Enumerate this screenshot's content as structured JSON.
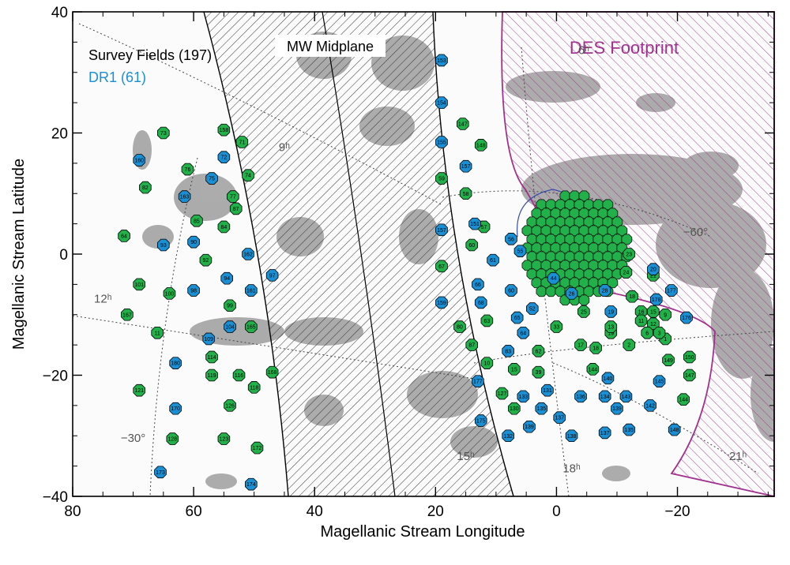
{
  "chart_data": {
    "type": "scatter",
    "title": "",
    "xlabel": "Magellanic Stream Longitude",
    "ylabel": "Magellanic Stream Latitude",
    "xlim": [
      80,
      -36
    ],
    "ylim": [
      -40,
      40
    ],
    "xticks": [
      "80",
      "60",
      "40",
      "20",
      "0",
      "−20"
    ],
    "xtick_values": [
      80,
      60,
      40,
      20,
      0,
      -20
    ],
    "yticks": [
      "40",
      "20",
      "0",
      "−20",
      "−40"
    ],
    "ytick_values": [
      40,
      20,
      0,
      -20,
      -40
    ],
    "legend": [
      {
        "label": "Survey Fields (197)",
        "color": "#000000"
      },
      {
        "label": "DR1 (61)",
        "color": "#1a8fd4"
      }
    ],
    "annotations": {
      "mw_midplane": "MW Midplane",
      "des_footprint": "DES Footprint",
      "grid_labels": [
        {
          "text": "6ʰ",
          "x": -4.5,
          "y": 33
        },
        {
          "text": "9ʰ",
          "x": 45,
          "y": 17
        },
        {
          "text": "12ʰ",
          "x": 75,
          "y": -8
        },
        {
          "text": "15ʰ",
          "x": 15,
          "y": -34
        },
        {
          "text": "18ʰ",
          "x": -2.5,
          "y": -36
        },
        {
          "text": "21ʰ",
          "x": -30,
          "y": -34
        },
        {
          "text": "−30°",
          "x": 70,
          "y": -31
        },
        {
          "text": "−60°",
          "x": -23,
          "y": 3
        }
      ]
    },
    "colors": {
      "survey": "#22b04a",
      "dr1": "#1a8fd4",
      "des": "#a0318e",
      "hi": "#8a8a8a",
      "hatch": "#333333"
    },
    "series": [
      {
        "name": "Survey Fields (197)",
        "points": [
          {
            "x": 65,
            "y": 20,
            "label": "73"
          },
          {
            "x": 55,
            "y": 20.5,
            "label": "158"
          },
          {
            "x": 52,
            "y": 18.5,
            "label": "71"
          },
          {
            "x": 61,
            "y": 14,
            "label": "76"
          },
          {
            "x": 51,
            "y": 13,
            "label": "74"
          },
          {
            "x": 68,
            "y": 11,
            "label": "82"
          },
          {
            "x": 53.5,
            "y": 9.5,
            "label": "77"
          },
          {
            "x": 53,
            "y": 7.5,
            "label": "87"
          },
          {
            "x": 59.5,
            "y": 5.5,
            "label": "85"
          },
          {
            "x": 55,
            "y": 4.5,
            "label": "84"
          },
          {
            "x": 71.5,
            "y": 3,
            "label": "64"
          },
          {
            "x": 58,
            "y": -1,
            "label": "92"
          },
          {
            "x": 69,
            "y": -5,
            "label": "101"
          },
          {
            "x": 64,
            "y": -6.5,
            "label": "100"
          },
          {
            "x": 71,
            "y": -10,
            "label": "167"
          },
          {
            "x": 54,
            "y": -8.5,
            "label": "99"
          },
          {
            "x": 50.5,
            "y": -12,
            "label": "165"
          },
          {
            "x": 66,
            "y": -13,
            "label": "11"
          },
          {
            "x": 57,
            "y": -17,
            "label": "114"
          },
          {
            "x": 47,
            "y": -19.5,
            "label": "168"
          },
          {
            "x": 57,
            "y": -20,
            "label": "119"
          },
          {
            "x": 52.5,
            "y": -20,
            "label": "116"
          },
          {
            "x": 50,
            "y": -22,
            "label": "118"
          },
          {
            "x": 69,
            "y": -22.5,
            "label": "121"
          },
          {
            "x": 54,
            "y": -25,
            "label": "126"
          },
          {
            "x": 63.5,
            "y": -30.5,
            "label": "128"
          },
          {
            "x": 55,
            "y": -30.5,
            "label": "123"
          },
          {
            "x": 49.5,
            "y": -32,
            "label": "172"
          },
          {
            "x": 15.5,
            "y": 21.5,
            "label": "147"
          },
          {
            "x": 12.5,
            "y": 18,
            "label": "148"
          },
          {
            "x": 19,
            "y": 12.5,
            "label": "59"
          },
          {
            "x": 15,
            "y": 10,
            "label": "58"
          },
          {
            "x": 12,
            "y": 4.5,
            "label": "57"
          },
          {
            "x": 14,
            "y": 1.5,
            "label": "60"
          },
          {
            "x": 19,
            "y": -2,
            "label": "67"
          },
          {
            "x": 16,
            "y": -12,
            "label": "80"
          },
          {
            "x": 11.5,
            "y": -11,
            "label": "63"
          },
          {
            "x": 14,
            "y": -15,
            "label": "87"
          },
          {
            "x": 11.5,
            "y": -18,
            "label": "10"
          },
          {
            "x": 7,
            "y": -19,
            "label": "15"
          },
          {
            "x": 3,
            "y": -16,
            "label": "62"
          },
          {
            "x": 0,
            "y": -12,
            "label": "33"
          },
          {
            "x": 3,
            "y": -19.5,
            "label": "39"
          },
          {
            "x": 9,
            "y": -23,
            "label": "127"
          },
          {
            "x": 7,
            "y": -25.5,
            "label": "130"
          },
          {
            "x": -4,
            "y": -15,
            "label": "17"
          },
          {
            "x": -6.5,
            "y": -15.5,
            "label": "18"
          },
          {
            "x": -6,
            "y": -19,
            "label": "144"
          },
          {
            "x": -9,
            "y": -13,
            "label": "19"
          },
          {
            "x": -12,
            "y": -15,
            "label": "2"
          },
          {
            "x": -18,
            "y": -14,
            "label": "1"
          },
          {
            "x": -18.5,
            "y": -17.5,
            "label": "149"
          },
          {
            "x": -22,
            "y": -17,
            "label": "150"
          },
          {
            "x": -22,
            "y": -20,
            "label": "147"
          },
          {
            "x": -21,
            "y": -24,
            "label": "144"
          },
          {
            "x": -11.5,
            "y": -3,
            "label": "24"
          },
          {
            "x": -16,
            "y": -3.5,
            "label": "21"
          },
          {
            "x": -12.5,
            "y": -7,
            "label": "18"
          },
          {
            "x": -12,
            "y": 0,
            "label": "23"
          },
          {
            "x": -4.5,
            "y": -9.5,
            "label": "25"
          },
          {
            "x": -9,
            "y": -12,
            "label": "13"
          },
          {
            "x": -14,
            "y": -9.5,
            "label": "16"
          },
          {
            "x": -16,
            "y": -9.5,
            "label": "15"
          },
          {
            "x": -14,
            "y": -11,
            "label": "11"
          },
          {
            "x": -16,
            "y": -11.5,
            "label": "12"
          },
          {
            "x": -18,
            "y": -10,
            "label": "9"
          },
          {
            "x": -15,
            "y": -13,
            "label": "6"
          },
          {
            "x": -17,
            "y": -13,
            "label": "3"
          }
        ]
      },
      {
        "name": "DR1 (61)",
        "points": [
          {
            "x": 69,
            "y": 15.5,
            "label": "160"
          },
          {
            "x": 55,
            "y": 16,
            "label": "72"
          },
          {
            "x": 57,
            "y": 12.5,
            "label": "75"
          },
          {
            "x": 61.5,
            "y": 9.5,
            "label": "163"
          },
          {
            "x": 60,
            "y": 2,
            "label": "90"
          },
          {
            "x": 65,
            "y": 1.5,
            "label": "93"
          },
          {
            "x": 51,
            "y": 0,
            "label": "162"
          },
          {
            "x": 47,
            "y": -3.5,
            "label": "97"
          },
          {
            "x": 54.5,
            "y": -4,
            "label": "94"
          },
          {
            "x": 50.5,
            "y": -6,
            "label": "161"
          },
          {
            "x": 60,
            "y": -6,
            "label": "98"
          },
          {
            "x": 54,
            "y": -12,
            "label": "104"
          },
          {
            "x": 57.5,
            "y": -14,
            "label": "109"
          },
          {
            "x": 63,
            "y": -18,
            "label": "180"
          },
          {
            "x": 63,
            "y": -25.5,
            "label": "170"
          },
          {
            "x": 65.5,
            "y": -36,
            "label": "173"
          },
          {
            "x": 50.5,
            "y": -38,
            "label": "174"
          },
          {
            "x": 19,
            "y": 32,
            "label": "153"
          },
          {
            "x": 19,
            "y": 25,
            "label": "154"
          },
          {
            "x": 19,
            "y": 18.5,
            "label": "155"
          },
          {
            "x": 15,
            "y": 14.5,
            "label": "157"
          },
          {
            "x": 13.5,
            "y": 5,
            "label": "151"
          },
          {
            "x": 19,
            "y": 4,
            "label": "157"
          },
          {
            "x": 7.5,
            "y": 2.5,
            "label": "56"
          },
          {
            "x": 10.5,
            "y": -1,
            "label": "61"
          },
          {
            "x": 6,
            "y": 0.5,
            "label": "55"
          },
          {
            "x": 13,
            "y": -5,
            "label": "66"
          },
          {
            "x": 7.5,
            "y": -6,
            "label": "60"
          },
          {
            "x": 19,
            "y": -8,
            "label": "159"
          },
          {
            "x": 12.5,
            "y": -8,
            "label": "68"
          },
          {
            "x": 6.5,
            "y": -10.5,
            "label": "65"
          },
          {
            "x": 5.5,
            "y": -13,
            "label": "64"
          },
          {
            "x": 8,
            "y": -16,
            "label": "83"
          },
          {
            "x": 4,
            "y": -9,
            "label": "52"
          },
          {
            "x": 0.5,
            "y": -4,
            "label": "44"
          },
          {
            "x": -2.5,
            "y": -6.5,
            "label": "26"
          },
          {
            "x": -9,
            "y": -9.5,
            "label": "19"
          },
          {
            "x": -8,
            "y": -6,
            "label": "28"
          },
          {
            "x": -16.5,
            "y": -7.5,
            "label": "178"
          },
          {
            "x": -16,
            "y": -2.5,
            "label": "20"
          },
          {
            "x": -19,
            "y": -6,
            "label": "177"
          },
          {
            "x": -21.5,
            "y": -10.5,
            "label": "176"
          },
          {
            "x": 13,
            "y": -21,
            "label": "177"
          },
          {
            "x": -4,
            "y": -23.5,
            "label": "136"
          },
          {
            "x": -8,
            "y": -23.5,
            "label": "134"
          },
          {
            "x": -11.5,
            "y": -23.5,
            "label": "143"
          },
          {
            "x": -17,
            "y": -21,
            "label": "145"
          },
          {
            "x": 1.5,
            "y": -22.5,
            "label": "131"
          },
          {
            "x": 5.5,
            "y": -23.5,
            "label": "133"
          },
          {
            "x": 2.5,
            "y": -25.5,
            "label": "135"
          },
          {
            "x": -10,
            "y": -25.5,
            "label": "139"
          },
          {
            "x": -15.5,
            "y": -25,
            "label": "142"
          },
          {
            "x": -12,
            "y": -29,
            "label": "135"
          },
          {
            "x": -8.5,
            "y": -20.5,
            "label": "140"
          },
          {
            "x": 12.5,
            "y": -27.5,
            "label": "175"
          },
          {
            "x": 8,
            "y": -30,
            "label": "132"
          },
          {
            "x": 4.5,
            "y": -28.5,
            "label": "139"
          },
          {
            "x": -0.5,
            "y": -27,
            "label": "137"
          },
          {
            "x": -2.5,
            "y": -30,
            "label": "138"
          },
          {
            "x": -8,
            "y": -29.5,
            "label": "137"
          },
          {
            "x": -19.5,
            "y": -29,
            "label": "148"
          }
        ]
      }
    ]
  }
}
